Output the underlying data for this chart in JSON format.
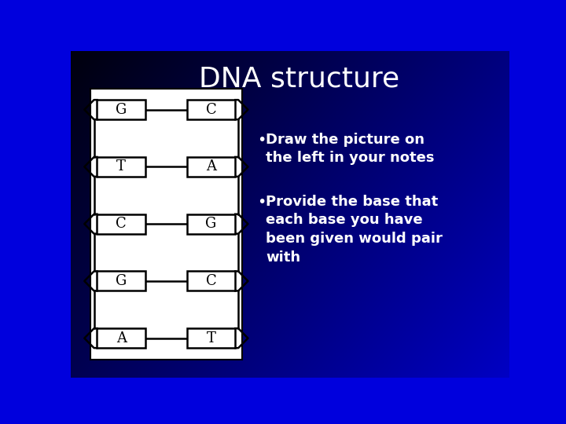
{
  "title": "DNA structure",
  "title_color": "#FFFFFF",
  "title_fontsize": 26,
  "bg_color_center": "#0000DD",
  "bg_color_corner": "#000020",
  "left_bases": [
    "G",
    "T",
    "C",
    "G",
    "A"
  ],
  "right_bases": [
    "C",
    "A",
    "G",
    "C",
    "T"
  ],
  "bullet_points": [
    "Draw the picture on the left in your notes",
    "Provide the base that each base you have been given would pair with"
  ],
  "box_facecolor": "#FFFFFF",
  "box_edgecolor": "#000000",
  "line_color": "#000000",
  "bullet_color": "#FFFFFF",
  "base_fontsize": 13,
  "bullet_fontsize": 13,
  "panel_facecolor": "#FFFFFF",
  "panel_edgecolor": "#000000"
}
